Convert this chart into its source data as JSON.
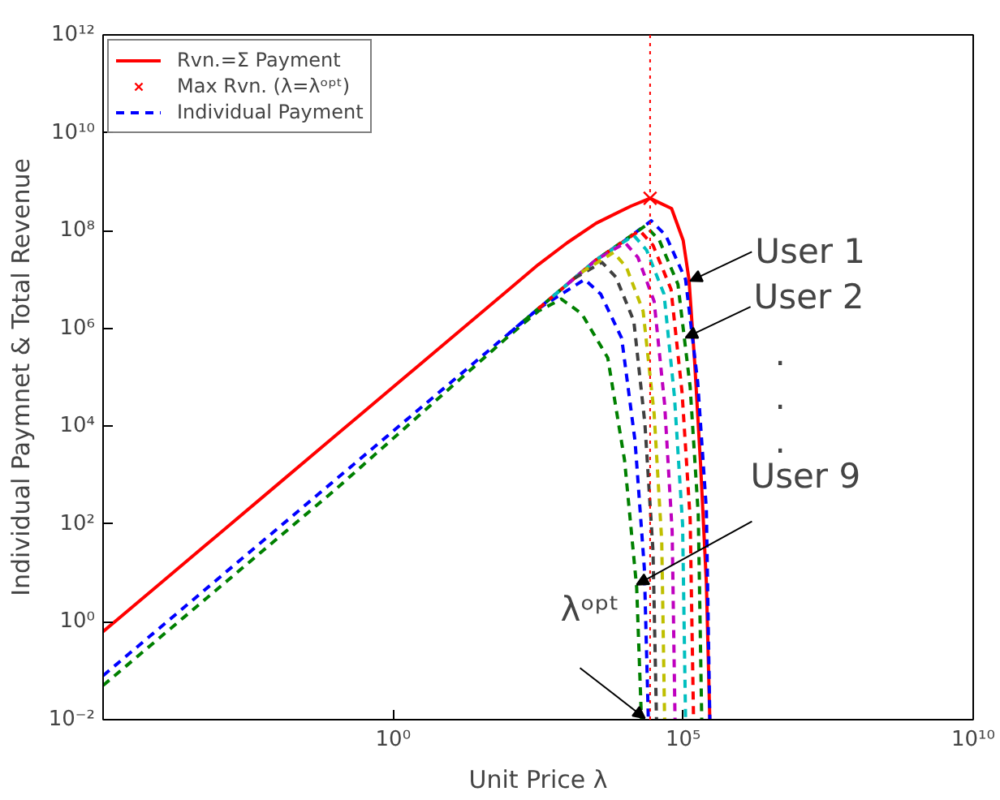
{
  "chart_data": {
    "type": "line",
    "xlabel": "Unit Price λ",
    "ylabel": "Individual Paymnet & Total Revenue",
    "log": "xy",
    "grid": false,
    "legend": "top left",
    "xlim": [
      1e-05,
      10000000000.0
    ],
    "ylim": [
      0.01,
      1000000000000.0
    ],
    "xticks": [
      {
        "value": 1,
        "label": "10⁰"
      },
      {
        "value": 100000,
        "label": "10⁵"
      },
      {
        "value": 10000000000.0,
        "label": "10¹⁰"
      }
    ],
    "yticks": [
      {
        "value": 0.01,
        "label": "10⁻²"
      },
      {
        "value": 1,
        "label": "10⁰"
      },
      {
        "value": 100,
        "label": "10²"
      },
      {
        "value": 10000,
        "label": "10⁴"
      },
      {
        "value": 1000000.0,
        "label": "10⁶"
      },
      {
        "value": 100000000.0,
        "label": "10⁸"
      },
      {
        "value": 10000000000.0,
        "label": "10¹⁰"
      },
      {
        "value": 1000000000000.0,
        "label": "10¹²"
      }
    ],
    "series": [
      {
        "name": "Rvn.=Σ Payment",
        "line_style": "solid",
        "color": "#ff0000",
        "x": [
          1e-05,
          0.0001,
          0.001,
          0.01,
          0.1,
          1,
          10,
          100,
          316,
          1000,
          3160,
          12600,
          26900,
          63100,
          100000,
          126000,
          158000,
          200000,
          251000,
          288000
        ],
        "values": [
          0.631,
          6.31,
          63.1,
          631,
          6310,
          63100,
          631000,
          6310000.0,
          20000000.0,
          56200000.0,
          141000000.0,
          316000000.0,
          457000000.0,
          282000000.0,
          63100000.0,
          10000000.0,
          200000.0,
          1580,
          6.31,
          0.01
        ]
      },
      {
        "name": "Max Rvn. (λ=λᵒᵖᵗ)",
        "type": "scatter",
        "marker": "cross",
        "color": "#ff0000",
        "x": [
          26900
        ],
        "values": [
          457000000.0
        ]
      },
      {
        "name": "Individual Payment",
        "line_style": "dashed",
        "color": "#0000ff",
        "x": [
          100,
          316,
          1000,
          3160,
          10000,
          28200,
          50100,
          110000,
          178000,
          251000,
          288000
        ],
        "values": [
          794000,
          2510000.0,
          7940000.0,
          25100000.0,
          63100000.0,
          158000000.0,
          79400000.0,
          10000000.0,
          79400,
          200,
          0.01
        ]
      },
      {
        "line_style": "dashed",
        "color": "#008000",
        "x": [
          178,
          316,
          1000,
          3160,
          22400,
          38900,
          81300,
          132000,
          182000,
          209000
        ],
        "values": [
          1410000.0,
          2510000.0,
          7940000.0,
          25100000.0,
          126000000.0,
          63100000.0,
          7940000.0,
          63100,
          158,
          0.01
        ]
      },
      {
        "line_style": "dashed",
        "color": "#ff0000",
        "x": [
          316,
          1000,
          3160,
          17800,
          30200,
          61700,
          95500,
          132000,
          151000
        ],
        "values": [
          2510000.0,
          7940000.0,
          25100000.0,
          100000000.0,
          50100000.0,
          6310000.0,
          50100,
          126,
          0.01
        ]
      },
      {
        "line_style": "dashed",
        "color": "#00bfbf",
        "x": [
          562,
          1000,
          3160,
          14100,
          23400,
          46800,
          70800,
          97700,
          110000
        ],
        "values": [
          4470000.0,
          7940000.0,
          25100000.0,
          79400000.0,
          39800000.0,
          5010000.0,
          39800,
          100,
          0.01
        ]
      },
      {
        "line_style": "dashed",
        "color": "#bf00bf",
        "x": [
          1000,
          3160,
          10000,
          16600,
          31600,
          47900,
          64600,
          72400
        ],
        "values": [
          7940000.0,
          25100000.0,
          56200000.0,
          28200000.0,
          3550000.0,
          28200,
          70.8,
          0.01
        ]
      },
      {
        "line_style": "dashed",
        "color": "#bfbf00",
        "x": [
          1780,
          6310,
          10500,
          20400,
          31600,
          42700,
          47900
        ],
        "values": [
          14100000.0,
          35500000.0,
          17800000.0,
          2240000.0,
          17800,
          44.7,
          0.01
        ]
      },
      {
        "line_style": "dashed",
        "color": "#404040",
        "x": [
          1330,
          3980,
          6920,
          14100,
          21900,
          30200,
          34700
        ],
        "values": [
          10600000.0,
          22400000.0,
          11200000.0,
          1410000.0,
          11200,
          28.2,
          0.01
        ]
      },
      {
        "line_style": "dashed",
        "color": "#0000ff",
        "x": [
          1e-05,
          0.0001,
          0.001,
          0.01,
          0.1,
          1,
          10,
          100,
          316,
          2000,
          3800,
          8710,
          14800,
          21400,
          25100
        ],
        "values": [
          0.0794,
          0.794,
          7.94,
          79.4,
          794,
          7940,
          79400,
          794000,
          2510000.0,
          10000000.0,
          5010000.0,
          631000,
          5010,
          12.6,
          0.01
        ]
      },
      {
        "line_style": "dashed",
        "color": "#008000",
        "x": [
          1e-05,
          0.0001,
          0.001,
          0.01,
          0.1,
          1,
          10,
          100,
          316,
          794,
          1780,
          5010,
          9770,
          15800,
          19100
        ],
        "values": [
          0.0501,
          0.501,
          5.01,
          50.1,
          501,
          5620,
          63100,
          708000,
          2240000.0,
          3980000.0,
          2000000.0,
          251000,
          2000,
          5.01,
          0.01
        ]
      }
    ],
    "ref_lines": [
      {
        "axis": "x",
        "value": 26900,
        "color": "#ff0000",
        "line_style": "dotted"
      }
    ],
    "annotations": [
      {
        "text": "User 1",
        "x": 132000,
        "y": 9300000.0
      },
      {
        "text": "User 2",
        "x": 110000,
        "y": 646000
      },
      ".",
      ".",
      ".",
      {
        "text": "User 9",
        "x": 15800,
        "y": 5.75
      },
      {
        "text": "λᵒᵖᵗ",
        "x": 21900,
        "y": 0.0107
      }
    ]
  }
}
